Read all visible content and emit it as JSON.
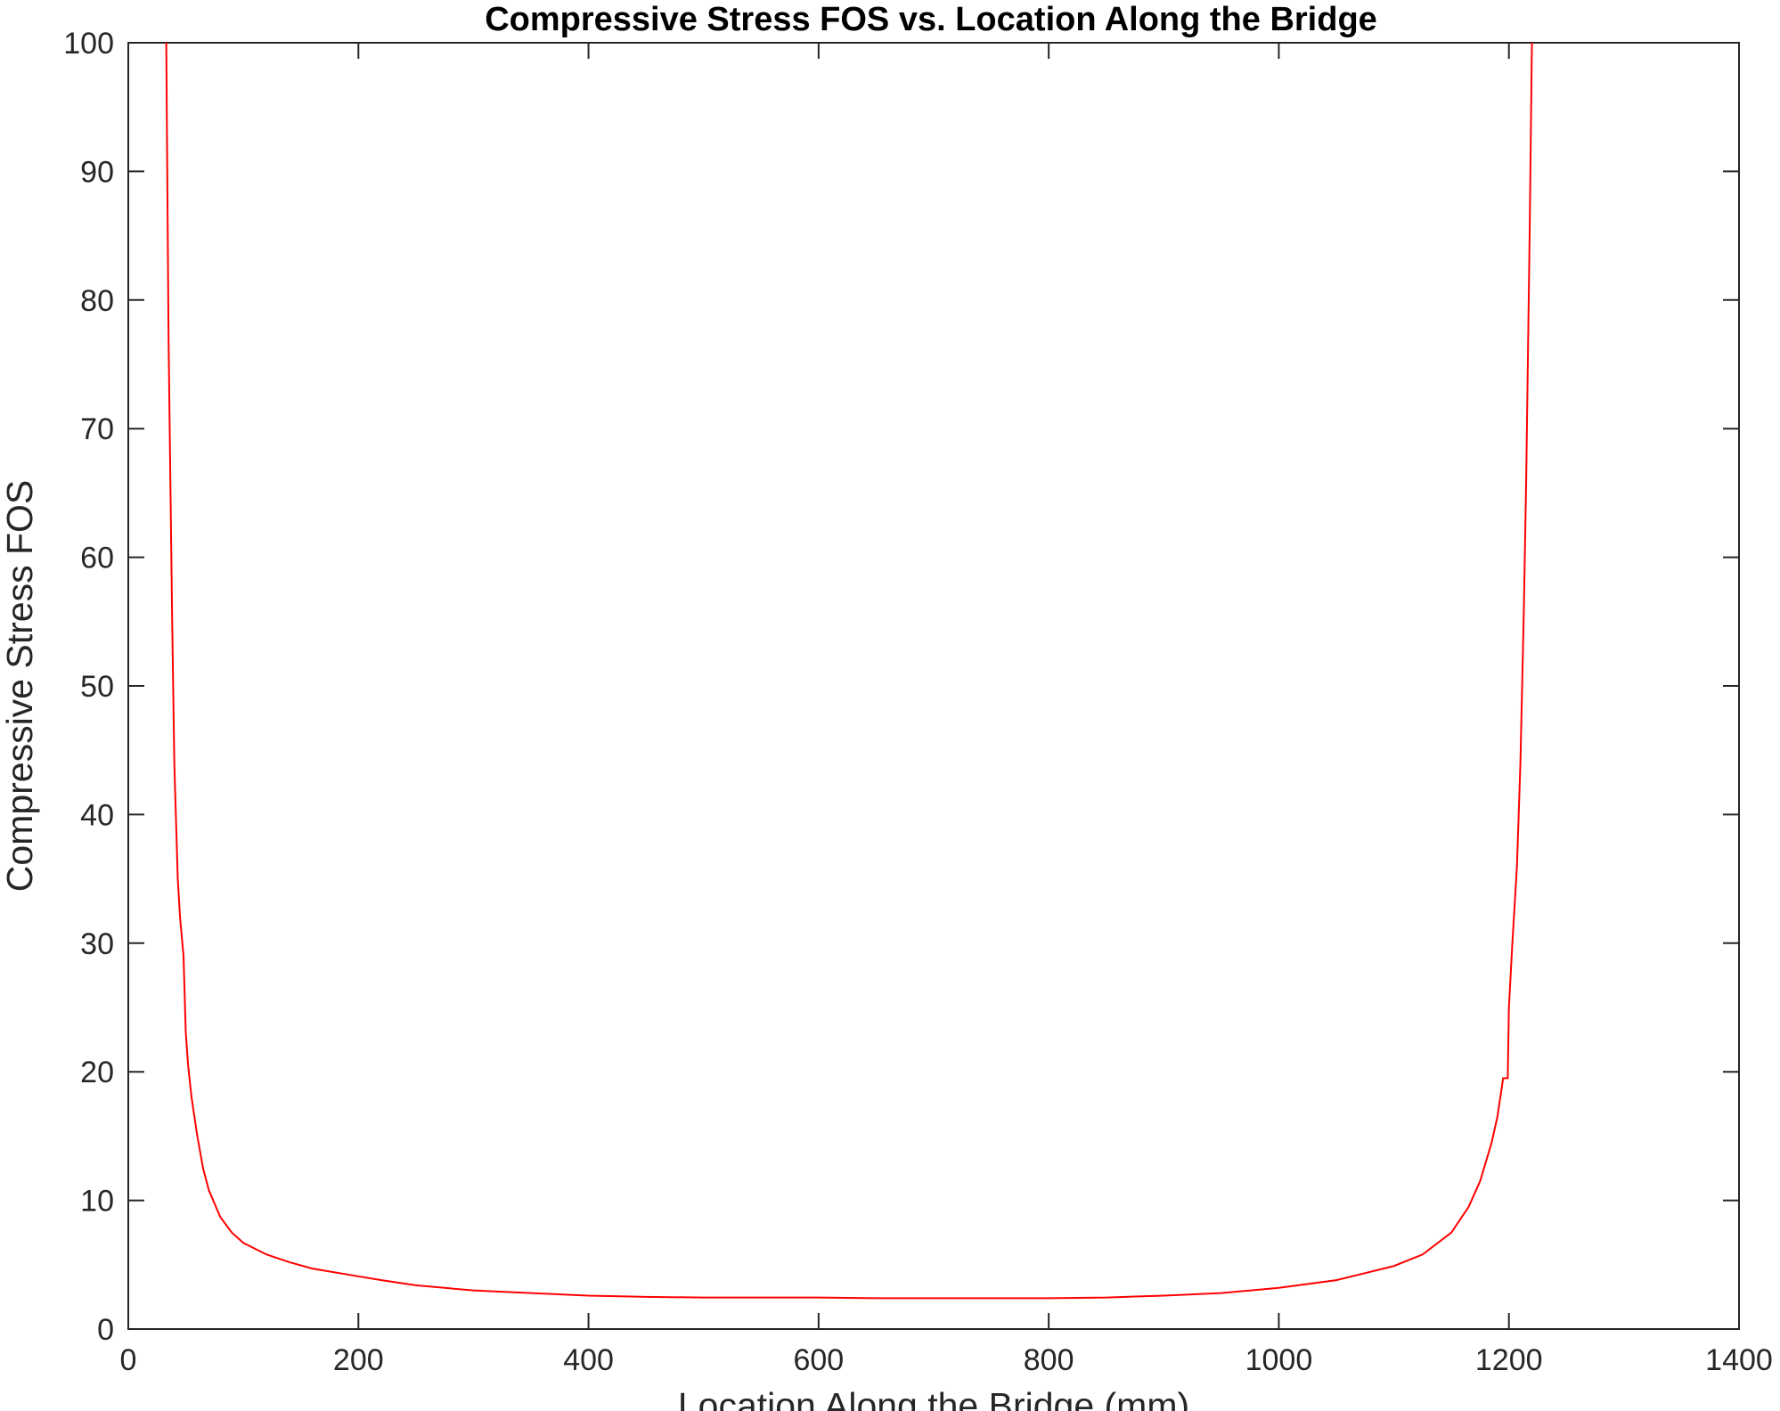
{
  "chart_data": {
    "type": "line",
    "title": "Compressive Stress FOS vs. Location Along the Bridge",
    "xlabel": "Location Along the Bridge (mm)",
    "ylabel": "Compressive Stress FOS",
    "xlim": [
      0,
      1400
    ],
    "ylim": [
      0,
      100
    ],
    "xticks": [
      0,
      200,
      400,
      600,
      800,
      1000,
      1200,
      1400
    ],
    "yticks": [
      0,
      10,
      20,
      30,
      40,
      50,
      60,
      70,
      80,
      90,
      100
    ],
    "grid": false,
    "series": [
      {
        "color": "#ff0000",
        "x": [
          33,
          35,
          38,
          40,
          43,
          45,
          48,
          50,
          52,
          55,
          60,
          65,
          70,
          80,
          90,
          100,
          120,
          140,
          160,
          180,
          200,
          220,
          250,
          300,
          350,
          400,
          450,
          500,
          550,
          600,
          650,
          700,
          750,
          800,
          850,
          900,
          950,
          1000,
          1050,
          1100,
          1125,
          1150,
          1165,
          1175,
          1185,
          1190,
          1195,
          1199,
          1200,
          1203,
          1207,
          1210,
          1213,
          1215,
          1218,
          1220
        ],
        "y": [
          100,
          77,
          56,
          44,
          35,
          32,
          29,
          23,
          20.5,
          18,
          15,
          12.5,
          10.8,
          8.7,
          7.5,
          6.7,
          5.8,
          5.2,
          4.7,
          4.4,
          4.1,
          3.8,
          3.4,
          3.0,
          2.8,
          2.6,
          2.5,
          2.45,
          2.45,
          2.45,
          2.4,
          2.4,
          2.4,
          2.4,
          2.45,
          2.6,
          2.8,
          3.2,
          3.8,
          4.9,
          5.8,
          7.5,
          9.5,
          11.5,
          14.5,
          16.5,
          19.5,
          19.5,
          25,
          30,
          36,
          44,
          56,
          66,
          85,
          100
        ]
      }
    ]
  }
}
